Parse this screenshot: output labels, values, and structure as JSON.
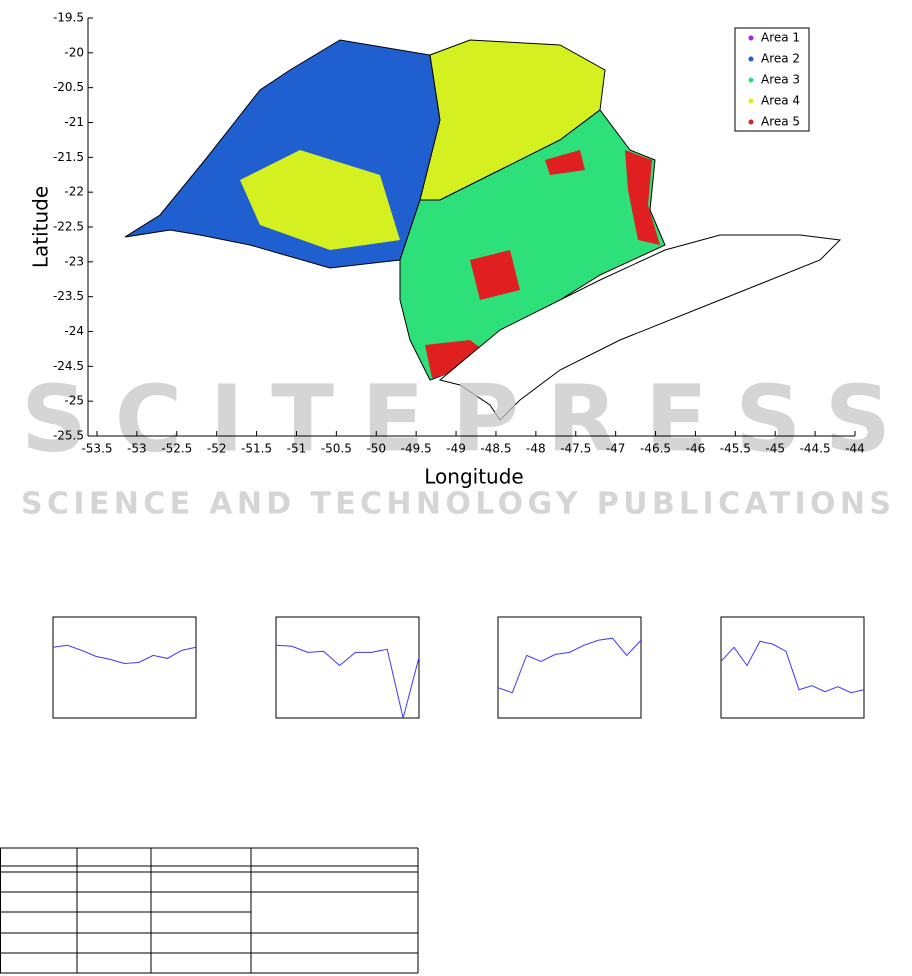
{
  "chart_data": [
    {
      "type": "map",
      "xlabel": "Longitude",
      "ylabel": "Latitude",
      "xlim": [
        -53.5,
        -44
      ],
      "ylim": [
        -25.5,
        -19.5
      ],
      "xticks": [
        -53.5,
        -53,
        -52.5,
        -52,
        -51.5,
        -51,
        -50.5,
        -50,
        -49.5,
        -49,
        -48.5,
        -48,
        -47.5,
        -47,
        -46.5,
        -46,
        -45.5,
        -45,
        -44.5,
        -44
      ],
      "yticks": [
        -19.5,
        -20,
        -20.5,
        -21,
        -21.5,
        -22,
        -22.5,
        -23,
        -23.5,
        -24,
        -24.5,
        -25,
        -25.5
      ],
      "legend": "upper right",
      "series": [
        {
          "name": "Area 1",
          "color": "#a020f0"
        },
        {
          "name": "Area 2",
          "color": "#1f5fd0"
        },
        {
          "name": "Area 3",
          "color": "#2ee07a"
        },
        {
          "name": "Area 4",
          "color": "#d4f020"
        },
        {
          "name": "Area 5",
          "color": "#e02020"
        }
      ]
    },
    {
      "type": "line",
      "color": "#3a3aff",
      "ylim": [
        0,
        1
      ],
      "values": [
        0.7,
        0.72,
        0.67,
        0.61,
        0.58,
        0.54,
        0.55,
        0.62,
        0.59,
        0.67,
        0.7
      ]
    },
    {
      "type": "line",
      "color": "#3a3aff",
      "ylim": [
        0,
        1
      ],
      "values": [
        0.72,
        0.71,
        0.65,
        0.66,
        0.52,
        0.65,
        0.65,
        0.68,
        0.0,
        0.6
      ]
    },
    {
      "type": "line",
      "color": "#3a3aff",
      "ylim": [
        0,
        1
      ],
      "values": [
        0.3,
        0.25,
        0.62,
        0.56,
        0.63,
        0.65,
        0.72,
        0.77,
        0.79,
        0.62,
        0.77
      ]
    },
    {
      "type": "line",
      "color": "#3a3aff",
      "ylim": [
        0,
        1
      ],
      "values": [
        0.56,
        0.7,
        0.52,
        0.76,
        0.73,
        0.66,
        0.28,
        0.32,
        0.26,
        0.31,
        0.25,
        0.28
      ]
    }
  ],
  "watermark": {
    "title": "SCITEPRESS",
    "subtitle": "SCIENCE AND TECHNOLOGY PUBLICATIONS"
  }
}
